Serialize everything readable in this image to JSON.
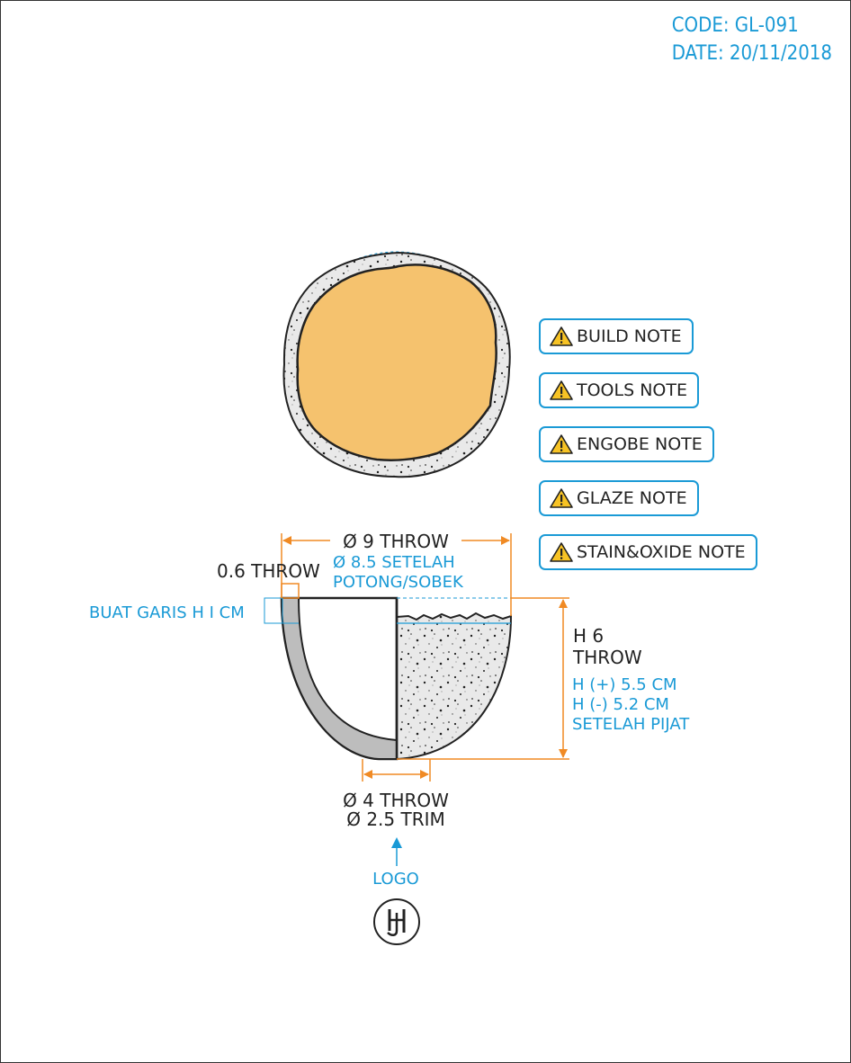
{
  "header": {
    "code": "CODE: GL-091",
    "date": "DATE: 20/11/2018"
  },
  "notes": [
    {
      "label": "BUILD NOTE"
    },
    {
      "label": "TOOLS NOTE"
    },
    {
      "label": "ENGOBE NOTE"
    },
    {
      "label": "GLAZE NOTE"
    },
    {
      "label": "STAIN&OXIDE NOTE"
    }
  ],
  "dimensions": {
    "top_diameter": "Ø 9 THROW",
    "top_diameter_after": "Ø 8.5 SETELAH",
    "top_diameter_after_2": "POTONG/SOBEK",
    "wall": "0.6 THROW",
    "line_mark": "BUAT GARIS H I CM",
    "height_1": "H 6",
    "height_2": "THROW",
    "height_plus": "H (+) 5.5 CM",
    "height_minus": "H (-) 5.2 CM",
    "height_after": "SETELAH PIJAT",
    "foot_throw": "Ø 4 THROW",
    "foot_trim": "Ø 2.5 TRIM",
    "logo_label": "LOGO"
  },
  "logo_mark": "HJ",
  "colors": {
    "accent_blue": "#1a9ad6",
    "dimension_orange": "#f08a24",
    "glaze_fill": "#f5c26e",
    "clay_grey": "#bdbdbd",
    "clay_speckle": "#e8e8e8"
  },
  "icons": [
    "warning-icon",
    "logo-stamp-icon",
    "arrow-up-icon"
  ]
}
